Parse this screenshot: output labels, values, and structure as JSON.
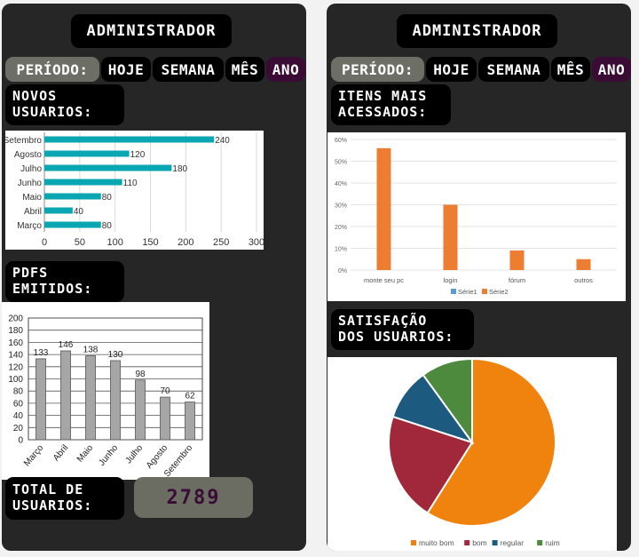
{
  "colors": {
    "panel": "#262626",
    "pill": "#000000",
    "label": "#6d6f66",
    "selected": "#3a0c35",
    "teal": "#0aa6b2",
    "orange": "#ed7d31",
    "gray_bar": "#a6a6a6"
  },
  "left": {
    "title": "ADMINISTRADOR",
    "periodo": {
      "label": "PERÍODO:",
      "options": [
        "HOJE",
        "SEMANA",
        "MÊS",
        "ANO"
      ],
      "selected": "ANO"
    },
    "novos_title": [
      "NOVOS",
      "USUARIOS:"
    ],
    "pdfs_title": [
      "PDFS",
      "EMITIDOS:"
    ],
    "total_title": [
      "TOTAL DE",
      "USUARIOS:"
    ],
    "total_value": "2789"
  },
  "right": {
    "title": "ADMINISTRADOR",
    "periodo": {
      "label": "PERÍODO:",
      "options": [
        "HOJE",
        "SEMANA",
        "MÊS",
        "ANO"
      ],
      "selected": "ANO"
    },
    "itens_title": [
      "ITENS MAIS",
      "ACESSADOS:"
    ],
    "satisf_title": [
      "SATISFAÇÃO",
      "DOS USUARIOS:"
    ]
  },
  "chart_data": [
    {
      "type": "bar",
      "orientation": "horizontal",
      "categories": [
        "Setembro",
        "Agosto",
        "Julho",
        "Junho",
        "Maio",
        "Abril",
        "Março"
      ],
      "values": [
        240,
        120,
        180,
        110,
        80,
        40,
        80
      ],
      "xlim": [
        0,
        300
      ],
      "xticks": [
        "0",
        "50",
        "100",
        "150",
        "200",
        "250",
        "300"
      ]
    },
    {
      "type": "bar",
      "categories": [
        "Março",
        "Abril",
        "Maio",
        "Junho",
        "Julho",
        "Agosto",
        "Setembro"
      ],
      "values": [
        133,
        146,
        138,
        130,
        98,
        70,
        62
      ],
      "ylim": [
        0,
        200
      ],
      "yticks": [
        "0",
        "20",
        "40",
        "60",
        "80",
        "100",
        "120",
        "140",
        "160",
        "180",
        "200"
      ]
    },
    {
      "type": "bar",
      "categories": [
        "monte seu pc",
        "login",
        "fórum",
        "outros"
      ],
      "series": [
        {
          "name": "Série1",
          "values": [
            0,
            0,
            0,
            0
          ]
        },
        {
          "name": "Série2",
          "values": [
            56,
            30,
            9,
            5
          ]
        }
      ],
      "ylim": [
        0,
        60
      ],
      "yticks": [
        "0%",
        "10%",
        "20%",
        "30%",
        "40%",
        "50%",
        "60%"
      ],
      "legend": "bottom"
    },
    {
      "type": "pie",
      "labels": [
        "muito bom",
        "bom",
        "regular",
        "ruim"
      ],
      "values": [
        59,
        21,
        10,
        10
      ],
      "colors": [
        "#f0820e",
        "#a0283a",
        "#1c5a80",
        "#4e8a3e"
      ],
      "legend": "bottom"
    }
  ]
}
